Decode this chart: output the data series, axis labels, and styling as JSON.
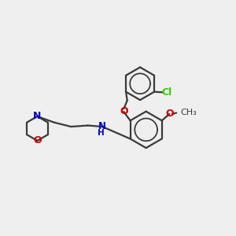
{
  "bg_color": "#efefef",
  "bond_color": "#3a3a3a",
  "N_color": "#0000cc",
  "O_color": "#cc0000",
  "Cl_color": "#33cc00",
  "line_width": 1.6,
  "fig_size": [
    3.0,
    3.0
  ],
  "dpi": 100,
  "xlim": [
    0,
    10
  ],
  "ylim": [
    0,
    10
  ]
}
